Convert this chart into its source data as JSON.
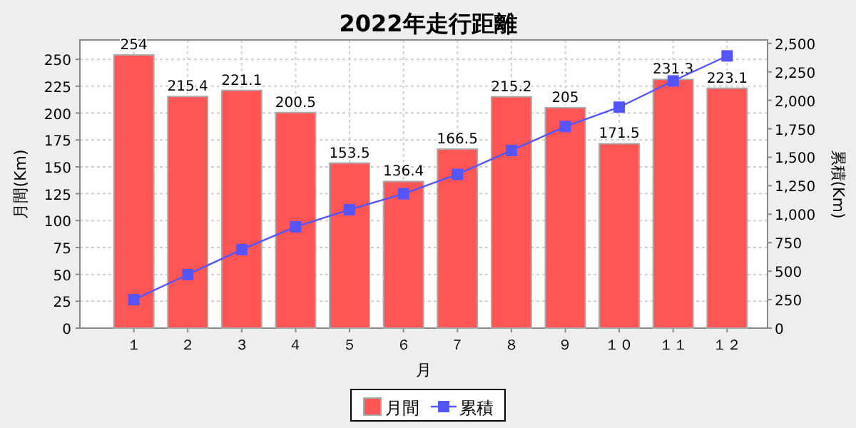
{
  "chart_data": {
    "type": "bar",
    "title": "2022年走行距離",
    "xlabel": "月",
    "ylabel": "月間(Km)",
    "y2label": "累積(Km)",
    "categories": [
      "１",
      "２",
      "３",
      "４",
      "５",
      "６",
      "７",
      "８",
      "９",
      "１０",
      "１１",
      "１２"
    ],
    "series": [
      {
        "name": "月間",
        "color": "#ff5555",
        "values": [
          254,
          215.4,
          221.1,
          200.5,
          153.5,
          136.4,
          166.5,
          215.2,
          205,
          171.5,
          231.3,
          223.1
        ],
        "value_labels": [
          "254",
          "215.4",
          "221.1",
          "200.5",
          "153.5",
          "136.4",
          "166.5",
          "215.2",
          "205",
          "171.5",
          "231.3",
          "223.1"
        ]
      },
      {
        "name": "累積",
        "type": "line",
        "axis": "y2",
        "color": "#5555ff",
        "marker": "square",
        "values": [
          250,
          470,
          690,
          890,
          1040,
          1180,
          1350,
          1560,
          1770,
          1940,
          2170,
          2390
        ]
      }
    ],
    "ylim": [
      0,
      268
    ],
    "yticks": [
      0,
      25,
      50,
      75,
      100,
      125,
      150,
      175,
      200,
      225,
      250
    ],
    "y2lim": [
      0,
      2530
    ],
    "y2ticks": [
      0,
      {
        "value": 250,
        "label": "250"
      },
      {
        "value": 500,
        "label": "500"
      },
      {
        "value": 750,
        "label": "750"
      },
      {
        "value": 1000,
        "label": "1,000"
      },
      {
        "value": 1250,
        "label": "1,250"
      },
      {
        "value": 1500,
        "label": "1,500"
      },
      {
        "value": 1750,
        "label": "1,750"
      },
      {
        "value": 2000,
        "label": "2,000"
      },
      {
        "value": 2250,
        "label": "2,250"
      },
      {
        "value": 2500,
        "label": "2,500"
      }
    ],
    "grid": true,
    "legend": "bottom"
  }
}
